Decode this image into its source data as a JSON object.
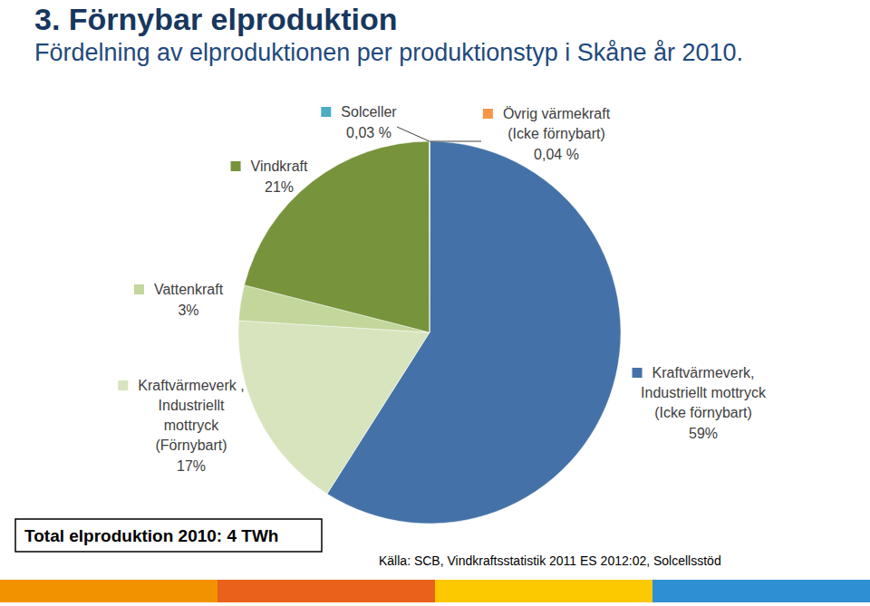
{
  "chart_data": {
    "type": "pie",
    "title": "3. Förnybar elproduktion",
    "subtitle": "Fördelning av elproduktionen per produktionstyp i Skåne år 2010.",
    "categories": [
      "Övrig värmekraft\n(Icke förnybart)",
      "Kraftvärmeverk,\nIndustriellt mottryck\n(Icke förnybart)",
      "Kraftvärmeverk ,\nIndustriellt\nmottryck\n(Förnybart)",
      "Vattenkraft",
      "Vindkraft",
      "Solceller"
    ],
    "values": [
      0.04,
      59,
      17,
      3,
      21,
      0.03
    ],
    "value_labels": [
      "0,04 %",
      "59%",
      "17%",
      "3%",
      "21%",
      "0,03 %"
    ],
    "colors": [
      "#f79646",
      "#4472a8",
      "#d7e4bd",
      "#c3d69b",
      "#77933c",
      "#4bacc6"
    ],
    "data_labels": true,
    "annotations": [
      "Total elproduktion 2010: 4 TWh",
      "Källa: SCB, Vindkraftsstatistik 2011 ES 2012:02, Solcellsstöd"
    ]
  }
}
